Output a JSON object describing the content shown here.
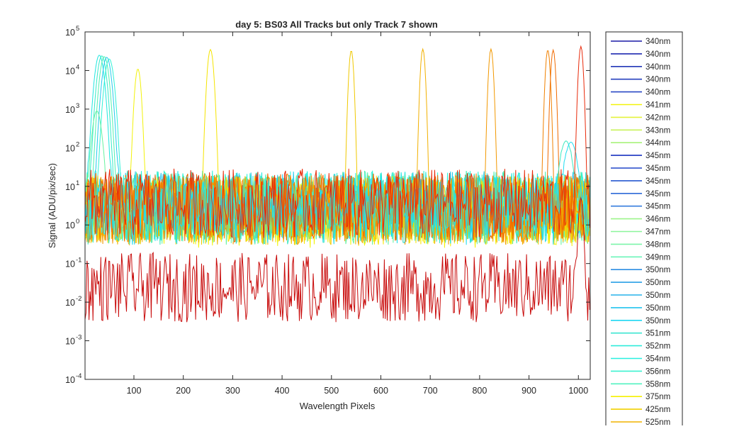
{
  "chart_data": {
    "type": "line",
    "title": "day 5: BS03   All Tracks but only Track 7 shown",
    "xlabel": "Wavelength Pixels",
    "ylabel": "Signal (ADU/pix/sec)",
    "xlim": [
      1,
      1024
    ],
    "ylim": [
      0.0001,
      100000
    ],
    "yscale": "log",
    "grid": false,
    "legend_placement": "outside-right",
    "x_ticks": [
      100,
      200,
      300,
      400,
      500,
      600,
      700,
      800,
      900,
      1000
    ],
    "x_tick_labels": [
      "100",
      "200",
      "300",
      "400",
      "500",
      "600",
      "700",
      "800",
      "900",
      "1000"
    ],
    "y_ticks": [
      0.0001,
      0.001,
      0.01,
      0.1,
      1,
      10,
      100,
      1000,
      10000,
      100000
    ],
    "y_tick_bases": [
      "10",
      "10",
      "10",
      "10",
      "10",
      "10",
      "10",
      "10",
      "10",
      "10"
    ],
    "y_tick_exponents": [
      "-4",
      "-3",
      "-2",
      "-1",
      "0",
      "1",
      "2",
      "3",
      "4",
      "5"
    ],
    "legend_entries": [
      {
        "name": "340nm",
        "color": "#1a1aa6"
      },
      {
        "name": "340nm",
        "color": "#1f2ab0"
      },
      {
        "name": "340nm",
        "color": "#2236b8"
      },
      {
        "name": "340nm",
        "color": "#2640be"
      },
      {
        "name": "340nm",
        "color": "#2a48c4"
      },
      {
        "name": "341nm",
        "color": "#f2f20a"
      },
      {
        "name": "342nm",
        "color": "#e4f23a"
      },
      {
        "name": "343nm",
        "color": "#c8f25a"
      },
      {
        "name": "344nm",
        "color": "#a8f27a"
      },
      {
        "name": "345nm",
        "color": "#1a33c0"
      },
      {
        "name": "345nm",
        "color": "#2046c8"
      },
      {
        "name": "345nm",
        "color": "#2758d0"
      },
      {
        "name": "345nm",
        "color": "#2e6ad8"
      },
      {
        "name": "345nm",
        "color": "#357cde"
      },
      {
        "name": "346nm",
        "color": "#9cf58a"
      },
      {
        "name": "347nm",
        "color": "#8cf59a"
      },
      {
        "name": "348nm",
        "color": "#7cf5aa"
      },
      {
        "name": "349nm",
        "color": "#6cf5ba"
      },
      {
        "name": "350nm",
        "color": "#2d8ee2"
      },
      {
        "name": "350nm",
        "color": "#2aa0e6"
      },
      {
        "name": "350nm",
        "color": "#26b2ea"
      },
      {
        "name": "350nm",
        "color": "#22c4ee"
      },
      {
        "name": "350nm",
        "color": "#1ed6f2"
      },
      {
        "name": "351nm",
        "color": "#3ce6d2"
      },
      {
        "name": "352nm",
        "color": "#30ecda"
      },
      {
        "name": "354nm",
        "color": "#28f0e0"
      },
      {
        "name": "356nm",
        "color": "#3ef2d0"
      },
      {
        "name": "358nm",
        "color": "#52f2c0"
      },
      {
        "name": "375nm",
        "color": "#f5f000"
      },
      {
        "name": "425nm",
        "color": "#f0d000"
      },
      {
        "name": "525nm",
        "color": "#f0b400"
      }
    ],
    "series": [
      {
        "color": "#1ee6e0",
        "peak_x": 30,
        "peak_y": 25000,
        "width": 6,
        "noise_level": 8
      },
      {
        "color": "#34eac8",
        "peak_x": 35,
        "peak_y": 24000,
        "width": 6,
        "noise_level": 8
      },
      {
        "color": "#4ef0b0",
        "peak_x": 40,
        "peak_y": 23000,
        "width": 6,
        "noise_level": 8
      },
      {
        "color": "#22c8ee",
        "peak_x": 45,
        "peak_y": 22000,
        "width": 6,
        "noise_level": 8
      },
      {
        "color": "#2ef2d6",
        "peak_x": 50,
        "peak_y": 20000,
        "width": 6,
        "noise_level": 8
      },
      {
        "color": "#66f2a0",
        "peak_x": 25,
        "peak_y": 900,
        "width": 6,
        "noise_level": 6
      },
      {
        "color": "#f2f20a",
        "peak_x": 108,
        "peak_y": 11000,
        "width": 4,
        "noise_level": 5
      },
      {
        "color": "#f5e400",
        "peak_x": 255,
        "peak_y": 35000,
        "width": 4,
        "noise_level": 6
      },
      {
        "color": "#f0c800",
        "peak_x": 540,
        "peak_y": 33000,
        "width": 3,
        "noise_level": 6
      },
      {
        "color": "#f2b000",
        "peak_x": 685,
        "peak_y": 36000,
        "width": 3,
        "noise_level": 6
      },
      {
        "color": "#f29800",
        "peak_x": 823,
        "peak_y": 36000,
        "width": 3,
        "noise_level": 6
      },
      {
        "color": "#f08000",
        "peak_x": 938,
        "peak_y": 34000,
        "width": 3,
        "noise_level": 7
      },
      {
        "color": "#f06a00",
        "peak_x": 949,
        "peak_y": 34000,
        "width": 3,
        "noise_level": 7
      },
      {
        "color": "#3ce8c0",
        "peak_x": 975,
        "peak_y": 150,
        "width": 8,
        "noise_level": 6
      },
      {
        "color": "#1edcf0",
        "peak_x": 985,
        "peak_y": 140,
        "width": 8,
        "noise_level": 6
      },
      {
        "color": "#e82a0a",
        "peak_x": 1005,
        "peak_y": 42000,
        "width": 3,
        "noise_level": 9
      },
      {
        "color": "#c80a0a",
        "peak_x": 1005,
        "peak_y": 5,
        "width": 3,
        "noise_level": 0.06
      }
    ]
  }
}
